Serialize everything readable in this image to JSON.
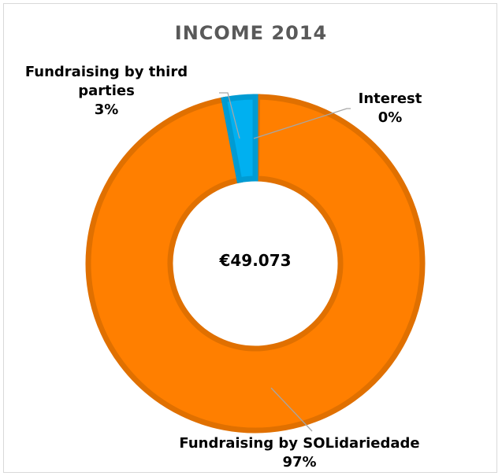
{
  "chart_data": {
    "type": "pie",
    "title": "INCOME 2014",
    "center_label": "€49.073",
    "series": [
      {
        "name": "Fundraising by SOLidariedade",
        "value": 97,
        "value_label": "97%",
        "color": "#FF7F00"
      },
      {
        "name": "Fundraising by third parties",
        "value": 3,
        "value_label": "3%",
        "color": "#00B0F0"
      },
      {
        "name": "Interest",
        "value": 0.2,
        "value_label": "0%",
        "color": "#70AD47"
      }
    ]
  },
  "labels": {
    "third_line1": "Fundraising by third",
    "third_line2": "parties",
    "third_pct": "3%",
    "interest_name": "Interest",
    "interest_pct": "0%",
    "sol_name": "Fundraising by SOLidariedade",
    "sol_pct": "97%"
  }
}
